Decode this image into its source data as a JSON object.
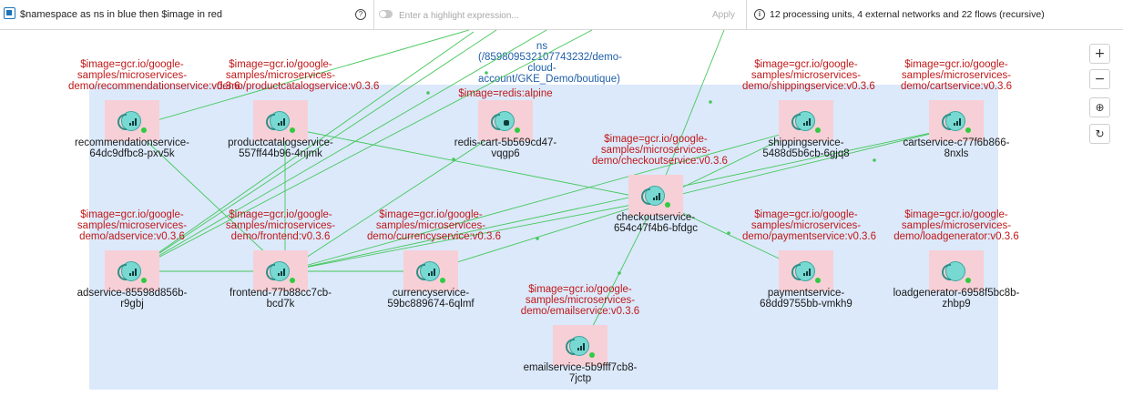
{
  "toolbar": {
    "query": "$namespace as ns in blue then $image in red",
    "help_icon": "?",
    "highlight_placeholder": "Enter a highlight expression...",
    "apply_label": "Apply",
    "info_icon": "i",
    "info": "12 processing units, 4 external networks and 22 flows (recursive)"
  },
  "namespace": {
    "label": "ns (/859809532107743232/demo-cloud-account/GKE_Demo/boutique)",
    "color": "#dbe9fb"
  },
  "zoom_controls": {
    "zoom_in": "+",
    "zoom_out": "−",
    "center": "⊕",
    "refresh": "↻"
  },
  "colors": {
    "image_label": "#c01818",
    "ns_label": "#1f5fa8",
    "node_box": "#f6d0d6",
    "flow_line": "#45c75a"
  },
  "nodes": [
    {
      "id": "recommendation",
      "image": "$image=gcr.io/google-samples/microservices-demo/recommendationservice:v0.3.6",
      "name": "recommendationservice-64dc9dfbc8-pxv5k"
    },
    {
      "id": "productcatalog",
      "image": "$image=gcr.io/google-samples/microservices-demo/productcatalogservice:v0.3.6",
      "name": "productcatalogservice-557ff44b96-4njmk"
    },
    {
      "id": "redis",
      "image": "$image=redis:alpine",
      "name": "redis-cart-5b569cd47-vqgp6"
    },
    {
      "id": "shipping",
      "image": "$image=gcr.io/google-samples/microservices-demo/shippingservice:v0.3.6",
      "name": "shippingservice-5488d5b6cb-6gjq8"
    },
    {
      "id": "cart",
      "image": "$image=gcr.io/google-samples/microservices-demo/cartservice:v0.3.6",
      "name": "cartservice-c77f6b866-8nxls"
    },
    {
      "id": "checkout",
      "image": "$image=gcr.io/google-samples/microservices-demo/checkoutservice:v0.3.6",
      "name": "checkoutservice-654c47f4b6-bfdgc"
    },
    {
      "id": "ad",
      "image": "$image=gcr.io/google-samples/microservices-demo/adservice:v0.3.6",
      "name": "adservice-85598d856b-r9gbj"
    },
    {
      "id": "frontend",
      "image": "$image=gcr.io/google-samples/microservices-demo/frontend:v0.3.6",
      "name": "frontend-77b88cc7cb-bcd7k"
    },
    {
      "id": "currency",
      "image": "$image=gcr.io/google-samples/microservices-demo/currencyservice:v0.3.6",
      "name": "currencyservice-59bc889674-6qlmf"
    },
    {
      "id": "payment",
      "image": "$image=gcr.io/google-samples/microservices-demo/paymentservice:v0.3.6",
      "name": "paymentservice-68dd9755bb-vmkh9"
    },
    {
      "id": "loadgenerator",
      "image": "$image=gcr.io/google-samples/microservices-demo/loadgenerator:v0.3.6",
      "name": "loadgenerator-6958f5bc8b-zhbp9"
    },
    {
      "id": "email",
      "image": "$image=gcr.io/google-samples/microservices-demo/emailservice:v0.3.6",
      "name": "emailservice-5b9fff7cb8-7jctp"
    }
  ]
}
